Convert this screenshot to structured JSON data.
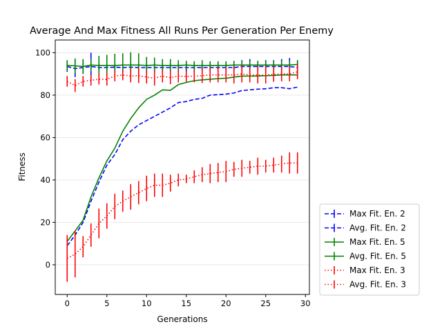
{
  "chart_data": {
    "type": "line",
    "title": "Average And Max Fitness All Runs Per Generation Per Enemy",
    "xlabel": "Generations",
    "ylabel": "Fitness",
    "xlim": [
      -1.5,
      30.5
    ],
    "ylim": [
      -14,
      106
    ],
    "x_ticks": [
      0,
      5,
      10,
      15,
      20,
      25,
      30
    ],
    "y_ticks": [
      0,
      20,
      40,
      60,
      80,
      100
    ],
    "grid": "horizontal",
    "legend_position": "outside-bottom-right",
    "x": [
      0,
      1,
      2,
      3,
      4,
      5,
      6,
      7,
      8,
      9,
      10,
      11,
      12,
      13,
      14,
      15,
      16,
      17,
      18,
      19,
      20,
      21,
      22,
      23,
      24,
      25,
      26,
      27,
      28,
      29
    ],
    "series": [
      {
        "name": "Max Fit. En. 2",
        "color": "#0000ff",
        "style": "dashed",
        "values": [
          93.5,
          92.5,
          93.0,
          93.5,
          93.0,
          93.0,
          93.2,
          93.0,
          93.2,
          93.0,
          93.0,
          93.0,
          93.0,
          93.0,
          93.0,
          93.0,
          93.0,
          93.0,
          93.0,
          93.0,
          93.0,
          93.0,
          93.5,
          93.5,
          93.5,
          93.5,
          93.5,
          93.5,
          93.5,
          93.0
        ],
        "err": [
          2.5,
          4.0,
          3.0,
          6.5,
          2.0,
          2.0,
          2.0,
          2.0,
          2.0,
          2.0,
          2.0,
          2.0,
          2.0,
          2.0,
          2.0,
          2.0,
          2.0,
          2.0,
          2.0,
          2.0,
          2.0,
          2.0,
          3.0,
          3.5,
          2.5,
          3.0,
          3.0,
          3.5,
          4.0,
          3.5
        ]
      },
      {
        "name": "Avg. Fit. En. 2",
        "color": "#0000ff",
        "style": "dashed",
        "values": [
          9,
          14,
          20,
          30,
          39,
          47,
          52,
          59,
          63,
          66,
          68,
          70,
          72,
          74,
          76.5,
          77,
          78,
          78.5,
          80,
          80.2,
          80.5,
          81,
          82.2,
          82.5,
          82.8,
          83,
          83.5,
          83.5,
          83,
          83.8
        ],
        "err": [
          0,
          0,
          0,
          0,
          0,
          0,
          0,
          0,
          0,
          0,
          0,
          0,
          0,
          0,
          0,
          0,
          0,
          0,
          0,
          0,
          0,
          0,
          0,
          0,
          0,
          0,
          0,
          0,
          0,
          0
        ]
      },
      {
        "name": "Max Fit. En. 5",
        "color": "#008000",
        "style": "solid",
        "values": [
          94,
          93.8,
          93.5,
          94.2,
          94,
          94,
          94,
          94.2,
          94.2,
          94.2,
          94,
          94.2,
          94,
          94,
          94,
          94.2,
          94,
          94,
          94,
          94,
          94,
          94.2,
          94.2,
          94.2,
          94.2,
          94.2,
          94.2,
          94.2,
          94.2,
          94.5
        ],
        "err": [
          2.5,
          3.5,
          3.5,
          3.0,
          4.5,
          5.0,
          5.5,
          5.5,
          6.0,
          5.5,
          4.0,
          3.5,
          3.0,
          3.0,
          2.5,
          2.0,
          2.0,
          2.5,
          2.0,
          2.0,
          2.0,
          2.0,
          2.0,
          2.0,
          2.0,
          2.0,
          2.0,
          2.0,
          2.0,
          2.0
        ]
      },
      {
        "name": "Avg. Fit. En. 5",
        "color": "#008000",
        "style": "solid",
        "values": [
          11,
          16,
          21,
          32,
          41,
          49,
          55,
          63,
          69,
          74,
          78,
          80,
          82.5,
          82.3,
          85,
          86,
          86.8,
          87.2,
          87.5,
          87.8,
          88,
          88.5,
          89,
          89,
          89,
          89.2,
          89.3,
          89.5,
          89.5,
          89.5
        ],
        "err": [
          0,
          0,
          0,
          0,
          0,
          0,
          0,
          0,
          0,
          0,
          0,
          0,
          0,
          0,
          0,
          0,
          0,
          0,
          0,
          0,
          0,
          0,
          0,
          0,
          0,
          0,
          0,
          0,
          0,
          0
        ]
      },
      {
        "name": "Max Fit. En. 3",
        "color": "#ff0000",
        "style": "dotted",
        "values": [
          86.5,
          84.5,
          86.5,
          87,
          87.5,
          87.5,
          89,
          89.5,
          89,
          89.2,
          88.5,
          88,
          89,
          88.2,
          89,
          88.8,
          89,
          89.2,
          89.5,
          89.5,
          89.5,
          89.5,
          90,
          89.5,
          89.5,
          89.5,
          89.8,
          90,
          90,
          91
        ],
        "err": [
          2.5,
          3.0,
          2.5,
          2.5,
          2.5,
          3.0,
          2.5,
          2.5,
          3.0,
          3.5,
          3.0,
          3.5,
          3.0,
          3.0,
          3.0,
          2.5,
          3.0,
          3.5,
          3.5,
          3.5,
          3.5,
          4.0,
          4.0,
          3.5,
          4.0,
          4.0,
          3.5,
          3.5,
          3.5,
          3.5
        ]
      },
      {
        "name": "Avg. Fit. En. 3",
        "color": "#ff0000",
        "style": "dotted",
        "values": [
          3,
          5,
          8.5,
          14,
          19.5,
          23,
          27.5,
          30,
          32,
          34,
          36,
          37.5,
          37.5,
          38.5,
          40,
          40.5,
          41.5,
          42.5,
          43,
          43.5,
          44,
          45,
          45.5,
          46,
          46.5,
          46.5,
          47,
          47.5,
          48,
          48
        ],
        "err": [
          11,
          11,
          5,
          5.5,
          7,
          6,
          6,
          5,
          6,
          5.5,
          6,
          5.5,
          5.5,
          4,
          3,
          2,
          3,
          3.5,
          4.5,
          4.5,
          5,
          3.5,
          4,
          3,
          4,
          3,
          3.5,
          4,
          5,
          5
        ]
      }
    ]
  }
}
